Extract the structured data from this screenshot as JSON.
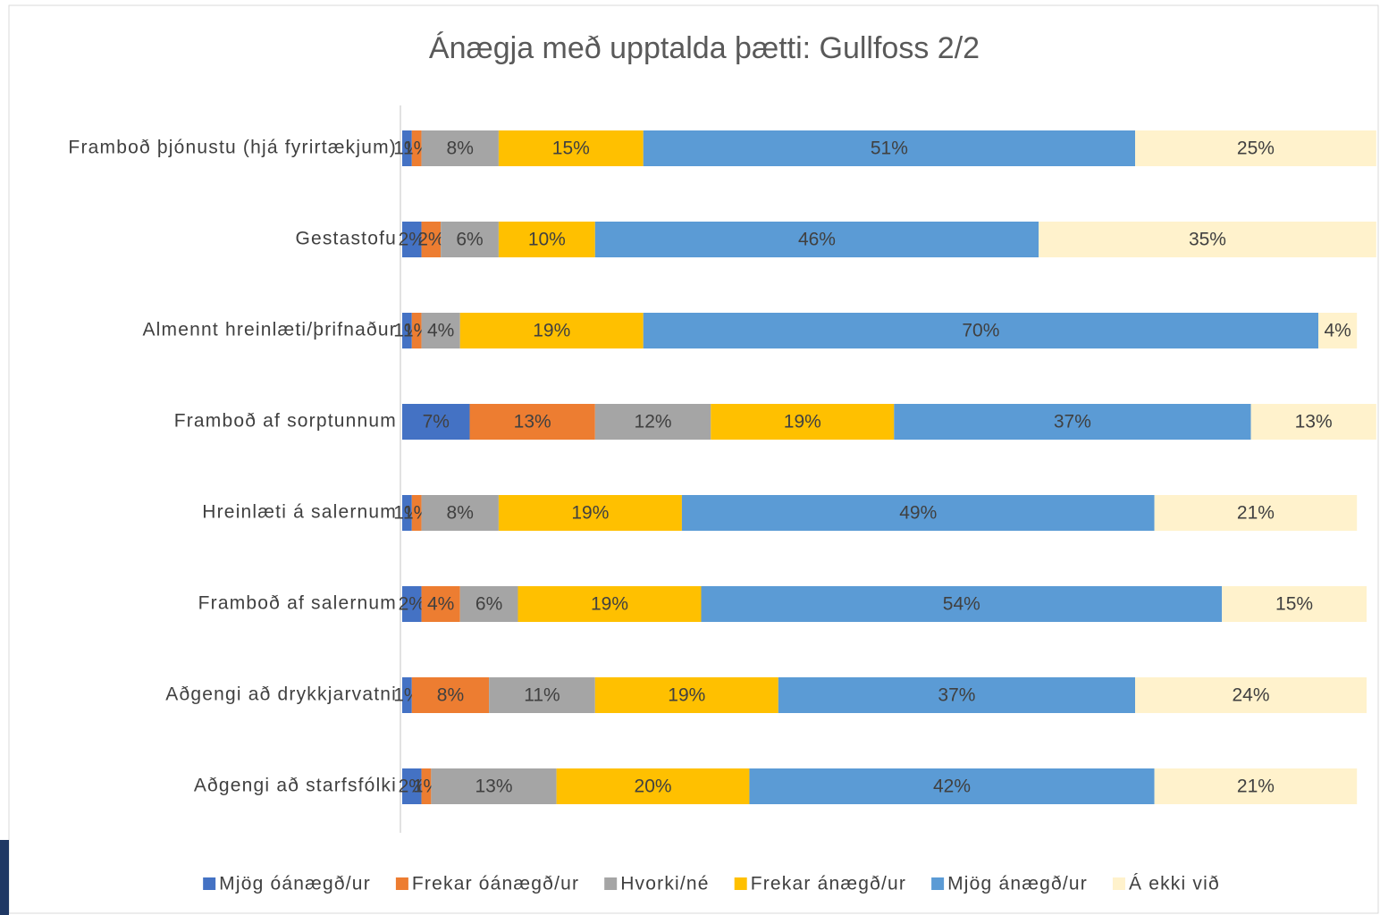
{
  "chart_data": {
    "type": "stacked-bar",
    "orientation": "horizontal",
    "title": "Ánægja með upptalda þætti: Gullfoss 2/2",
    "categories": [
      "Framboð þjónustu (hjá fyrirtækjum)",
      "Gestastofu",
      "Almennt hreinlæti/þrifnaður",
      "Framboð af sorptunnum",
      "Hreinlæti á salernum",
      "Framboð af salernum",
      "Aðgengi að drykkjarvatni",
      "Aðgengi að starfsfólki"
    ],
    "xlim": [
      0,
      100
    ],
    "legend": "bottom",
    "series": [
      {
        "name": "Mjög óánægð/ur",
        "color": "#4472c4",
        "values": [
          1,
          2,
          1,
          7,
          1,
          2,
          1,
          2
        ],
        "value_labels": [
          "1%",
          "2%",
          "1%",
          "7%",
          "1%",
          "2%",
          "1%",
          "2%"
        ]
      },
      {
        "name": "Frekar óánægð/ur",
        "color": "#ed7d31",
        "values": [
          1,
          2,
          1,
          13,
          1,
          4,
          8,
          1
        ],
        "value_labels": [
          "1%",
          "2%",
          "1%",
          "13%",
          "1%",
          "4%",
          "8%",
          "1%"
        ]
      },
      {
        "name": "Hvorki/né",
        "color": "#a5a5a5",
        "values": [
          8,
          6,
          4,
          12,
          8,
          6,
          11,
          13
        ],
        "value_labels": [
          "8%",
          "6%",
          "4%",
          "12%",
          "8%",
          "6%",
          "11%",
          "13%"
        ]
      },
      {
        "name": "Frekar ánægð/ur",
        "color": "#ffc000",
        "values": [
          15,
          10,
          19,
          19,
          19,
          19,
          19,
          20
        ],
        "value_labels": [
          "15%",
          "10%",
          "19%",
          "19%",
          "19%",
          "19%",
          "19%",
          "20%"
        ]
      },
      {
        "name": "Mjög ánægð/ur",
        "color": "#5b9bd5",
        "values": [
          51,
          46,
          70,
          37,
          49,
          54,
          37,
          42
        ],
        "value_labels": [
          "51%",
          "46%",
          "70%",
          "37%",
          "49%",
          "54%",
          "37%",
          "42%"
        ]
      },
      {
        "name": "Á ekki við",
        "color": "#fff2cc",
        "values": [
          25,
          35,
          4,
          13,
          21,
          15,
          24,
          21
        ],
        "value_labels": [
          "25%",
          "35%",
          "4%",
          "13%",
          "21%",
          "15%",
          "24%",
          "21%"
        ]
      }
    ]
  }
}
